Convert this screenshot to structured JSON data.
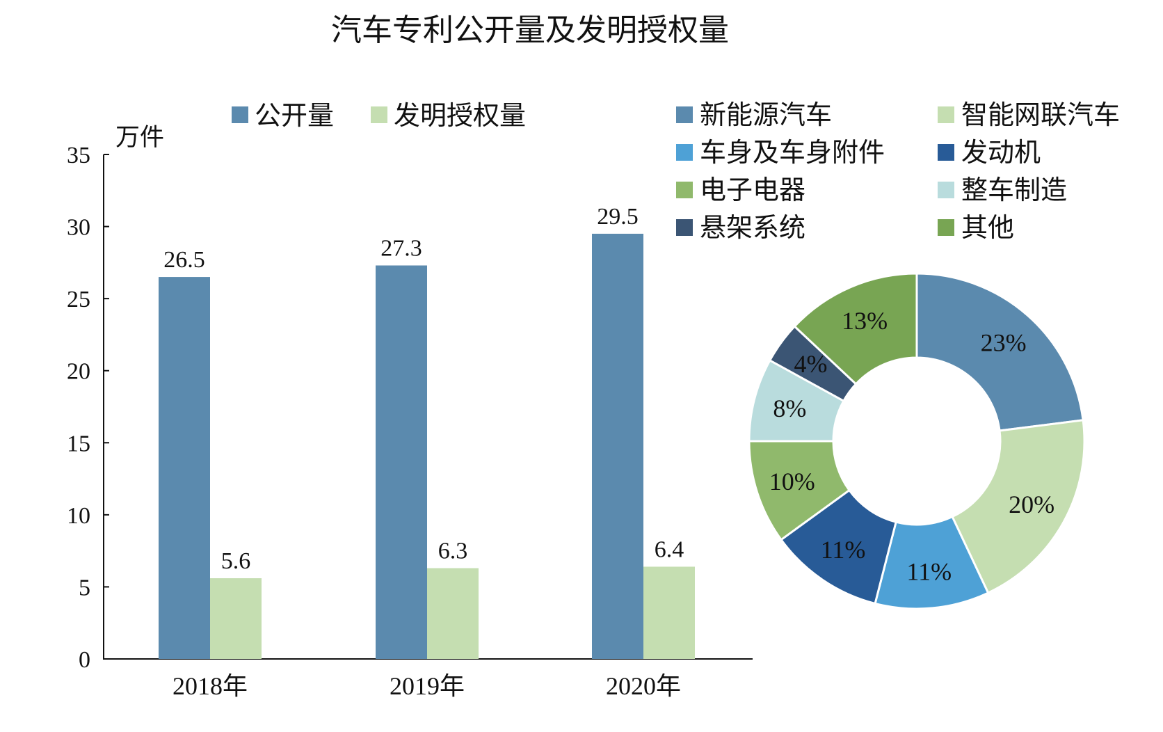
{
  "title": "汽车专利公开量及发明授权量",
  "bar_legend": [
    {
      "label": "公开量",
      "color": "#5b8aae"
    },
    {
      "label": "发明授权量",
      "color": "#c5deb1"
    }
  ],
  "pie_legend": [
    {
      "label": "新能源汽车",
      "color": "#5b8aae"
    },
    {
      "label": "智能网联汽车",
      "color": "#c5deb1"
    },
    {
      "label": "车身及车身附件",
      "color": "#4ea1d6"
    },
    {
      "label": "发动机",
      "color": "#285b97"
    },
    {
      "label": "电子电器",
      "color": "#90b96c"
    },
    {
      "label": "整车制造",
      "color": "#b9dcdd"
    },
    {
      "label": "悬架系统",
      "color": "#3b5574"
    },
    {
      "label": "其他",
      "color": "#78a553"
    }
  ],
  "chart_data": [
    {
      "type": "bar",
      "title": "汽车专利公开量及发明授权量",
      "ylabel": "万件",
      "ylim": [
        0,
        35
      ],
      "yticks": [
        0,
        5,
        10,
        15,
        20,
        25,
        30,
        35
      ],
      "categories": [
        "2018年",
        "2019年",
        "2020年"
      ],
      "series": [
        {
          "name": "公开量",
          "values": [
            26.5,
            27.3,
            29.5
          ],
          "labels": [
            "26.5",
            "27.3",
            "29.5"
          ],
          "color": "#5b8aae"
        },
        {
          "name": "发明授权量",
          "values": [
            5.6,
            6.3,
            6.4
          ],
          "labels": [
            "5.6",
            "6.3",
            "6.4"
          ],
          "color": "#c5deb1"
        }
      ],
      "grid": false,
      "legend": "top"
    },
    {
      "type": "pie",
      "donut": true,
      "slices": [
        {
          "label": "新能源汽车",
          "value": 23,
          "text": "23%",
          "color": "#5b8aae"
        },
        {
          "label": "智能网联汽车",
          "value": 20,
          "text": "20%",
          "color": "#c5deb1"
        },
        {
          "label": "车身及车身附件",
          "value": 11,
          "text": "11%",
          "color": "#4ea1d6"
        },
        {
          "label": "发动机",
          "value": 11,
          "text": "11%",
          "color": "#285b97"
        },
        {
          "label": "电子电器",
          "value": 10,
          "text": "10%",
          "color": "#90b96c"
        },
        {
          "label": "整车制造",
          "value": 8,
          "text": "8%",
          "color": "#b9dcdd"
        },
        {
          "label": "悬架系统",
          "value": 4,
          "text": "4%",
          "color": "#3b5574"
        },
        {
          "label": "其他",
          "value": 13,
          "text": "13%",
          "color": "#78a553"
        }
      ],
      "legend": "top"
    }
  ]
}
